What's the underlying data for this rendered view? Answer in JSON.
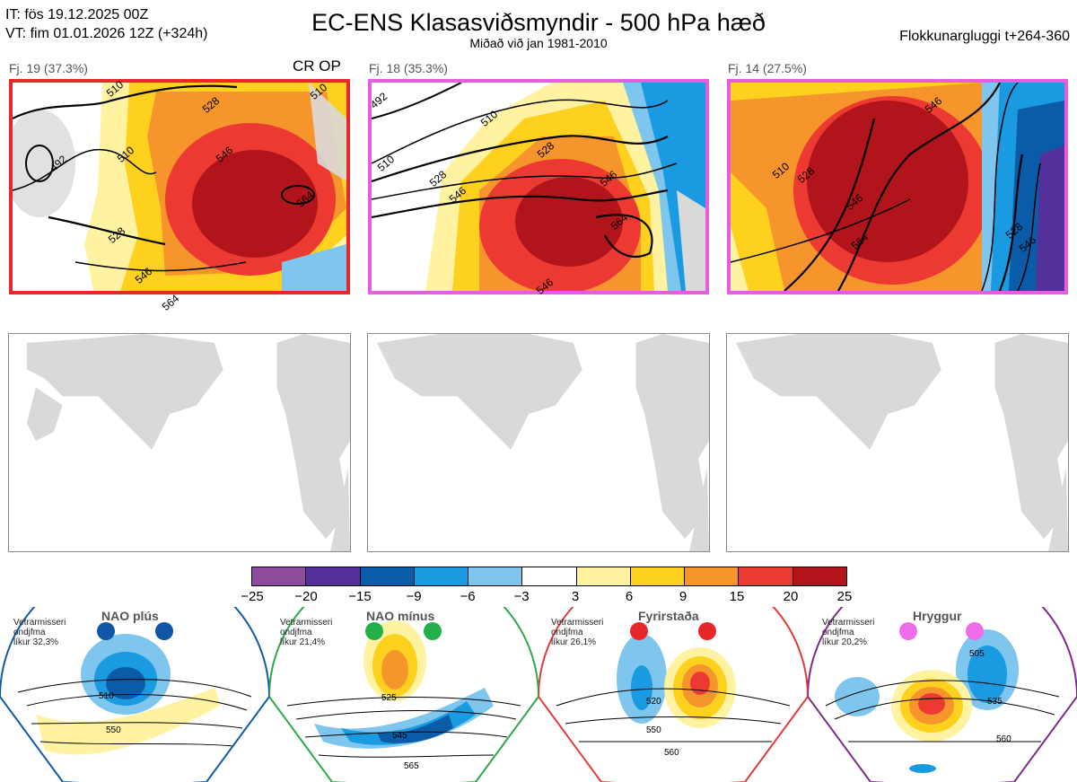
{
  "header": {
    "init_time": "IT: fös 19.12.2025 00Z",
    "valid_time": "VT: fim 01.01.2026 12Z  (+324h)",
    "title": "EC-ENS Klasasviðsmyndir - 500 hPa hæð",
    "subtitle": "Miðað við jan 1981-2010",
    "window": "Flokkunargluggi t+264-360"
  },
  "clusters": [
    {
      "label": "Fj. 19 (37.3%)",
      "border_color": "#e8272a",
      "contours": [
        "510",
        "492",
        "510",
        "528",
        "546",
        "564",
        "510",
        "528",
        "546",
        "564"
      ]
    },
    {
      "label": "Fj. 18 (35.3%)",
      "border_color": "#e85ce0",
      "contours": [
        "492",
        "510",
        "510",
        "528",
        "546",
        "528",
        "546",
        "564",
        "546"
      ]
    },
    {
      "label": "Fj. 14 (27.5%)",
      "border_color": "#e85ce0",
      "contours": [
        "546",
        "510",
        "528",
        "546",
        "564",
        "528",
        "546"
      ]
    }
  ],
  "crop_label": "CR OP",
  "colorbar": {
    "colors": [
      "#8f4a9e",
      "#54319a",
      "#0a5ba8",
      "#1a9ae0",
      "#7fc6ee",
      "#ffffff",
      "#fff2a0",
      "#fed11f",
      "#f7952d",
      "#ec3a32",
      "#b1141a"
    ],
    "ticks": [
      "−25",
      "−20",
      "−15",
      "−9",
      "−6",
      "−3",
      "3",
      "6",
      "9",
      "15",
      "20",
      "25"
    ]
  },
  "regimes": [
    {
      "name": "NAO plús",
      "desc_line1": "Vetrarmisseri",
      "desc_line2": "ondjfma",
      "prob": "líkur 32,3%",
      "frame_color": "#1359a8",
      "dot_color": "#0f56a6",
      "contours": [
        "510",
        "550"
      ]
    },
    {
      "name": "NAO mínus",
      "desc_line1": "Vetrarmisseri",
      "desc_line2": "ondjfma",
      "prob": "líkur 21,4%",
      "frame_color": "#2fa84a",
      "dot_color": "#23b04b",
      "contours": [
        "525",
        "545",
        "565"
      ]
    },
    {
      "name": "Fyrirstaða",
      "desc_line1": "Vetrarmisseri",
      "desc_line2": "ondjfma",
      "prob": "líkur 26,1%",
      "frame_color": "#e43a3a",
      "dot_color": "#e8272a",
      "contours": [
        "520",
        "550",
        "560"
      ]
    },
    {
      "name": "Hryggur",
      "desc_line1": "Vetrarmisseri",
      "desc_line2": "ondjfma",
      "prob": "líkur 20,2%",
      "frame_color": "#7d2a8c",
      "dot_color": "#ee6ce8",
      "contours": [
        "505",
        "535",
        "560"
      ]
    }
  ]
}
